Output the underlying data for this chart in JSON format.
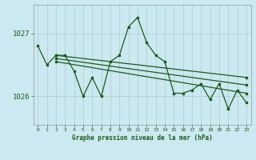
{
  "title": "Graphe pression niveau de la mer (hPa)",
  "background_color": "#cce8f0",
  "grid_color": "#aacccc",
  "line_color": "#1a5c1a",
  "xlim": [
    -0.5,
    23.5
  ],
  "ylim": [
    1025.55,
    1027.45
  ],
  "yticks": [
    1026,
    1027
  ],
  "xticks": [
    0,
    1,
    2,
    3,
    4,
    5,
    6,
    7,
    8,
    9,
    10,
    11,
    12,
    13,
    14,
    15,
    16,
    17,
    18,
    19,
    20,
    21,
    22,
    23
  ],
  "main_series": {
    "x": [
      0,
      1,
      2,
      3,
      4,
      5,
      6,
      7,
      8,
      9,
      10,
      11,
      12,
      13,
      14,
      15,
      16,
      17,
      18,
      19,
      20,
      21,
      22,
      23
    ],
    "y": [
      1026.8,
      1026.5,
      1026.65,
      1026.65,
      1026.4,
      1026.0,
      1026.3,
      1026.0,
      1026.55,
      1026.65,
      1027.1,
      1027.25,
      1026.85,
      1026.65,
      1026.55,
      1026.05,
      1026.05,
      1026.1,
      1026.2,
      1025.95,
      1026.2,
      1025.8,
      1026.1,
      1025.9
    ]
  },
  "trend_lines": [
    {
      "x": [
        2,
        23
      ],
      "y": [
        1026.65,
        1026.3
      ]
    },
    {
      "x": [
        2,
        23
      ],
      "y": [
        1026.6,
        1026.18
      ]
    },
    {
      "x": [
        2,
        23
      ],
      "y": [
        1026.55,
        1026.05
      ]
    }
  ]
}
